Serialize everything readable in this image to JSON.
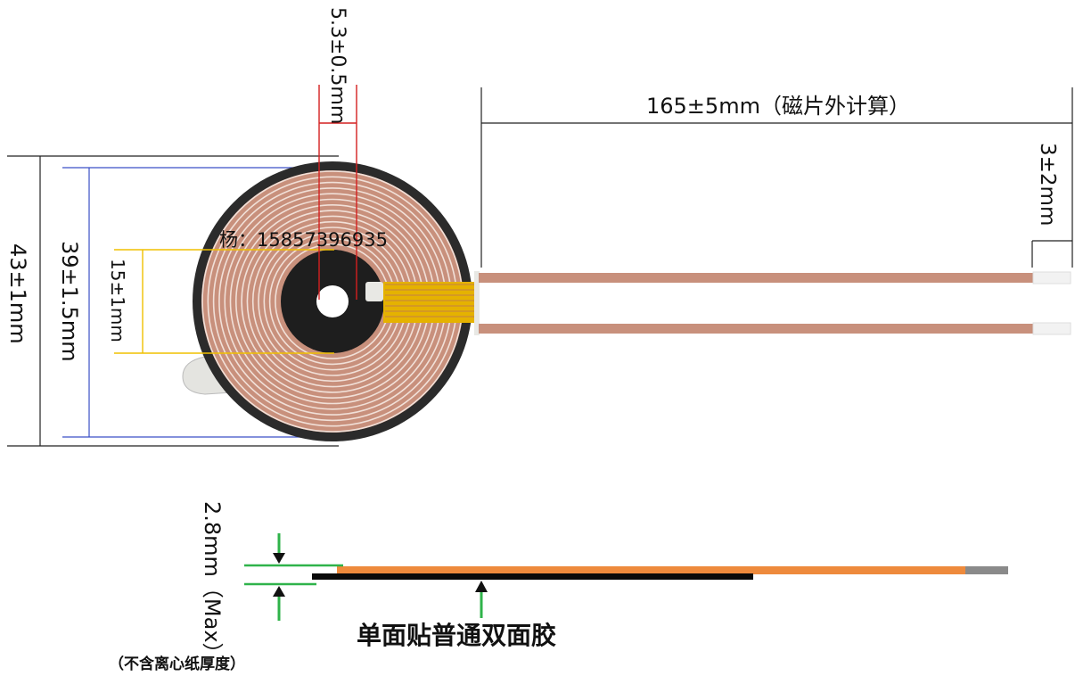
{
  "top_view": {
    "dims": {
      "inner_hole": "5.3±0.5mm",
      "lead_length": "165±5mm（磁片外计算）",
      "lead_strip": "3±2mm",
      "outer_diameter": "43±1mm",
      "coil_diameter": "39±1.5mm",
      "inner_diameter": "15±1mm"
    },
    "contact": "杨：15857396935"
  },
  "side_view": {
    "thickness": "2.8mm（Max）",
    "note": "（不含离心纸厚度）",
    "tape_label": "单面贴普通双面胶"
  },
  "colors": {
    "wire": "#c8907c",
    "ferrite": "#2b2b2b",
    "tape": "#e5b200",
    "orange_layer": "#ee8a3c",
    "black_layer": "#0a0a0a",
    "blue_dim": "#3a4fc6",
    "red_dim": "#d42020",
    "yellow_dim": "#f0c000",
    "green_arrow": "#2fb34a"
  }
}
